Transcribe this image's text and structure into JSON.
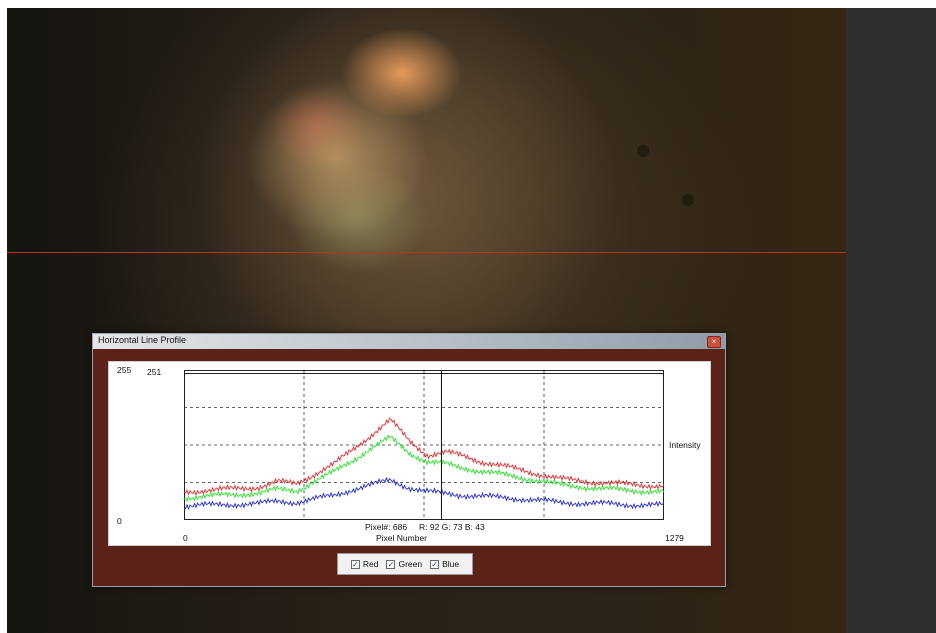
{
  "window": {
    "title": "Horizontal Line Profile",
    "close_glyph": "×"
  },
  "chart_data": {
    "type": "line",
    "title": "",
    "xlabel": "Pixel Number",
    "ylabel": "Intensity",
    "xlim": [
      0,
      1279
    ],
    "ylim": [
      0,
      255
    ],
    "x_tick_labels": [
      "0",
      "1279"
    ],
    "y_tick_labels": [
      "0",
      "255"
    ],
    "y_max_readout": "251",
    "cursor": {
      "pixel": 686,
      "readout": "Pixel#: 686",
      "rgb_readout": "R: 92 G: 73 B: 43"
    },
    "grid": true,
    "x": [
      0,
      100,
      200,
      250,
      300,
      400,
      450,
      500,
      550,
      600,
      650,
      700,
      750,
      800,
      900,
      1000,
      1100,
      1200,
      1279
    ],
    "series": [
      {
        "name": "Red",
        "color": "#e02a2a",
        "values": [
          48,
          52,
          56,
          65,
          62,
          95,
          120,
          145,
          170,
          135,
          110,
          115,
          108,
          98,
          85,
          70,
          64,
          60,
          58
        ]
      },
      {
        "name": "Green",
        "color": "#27e027",
        "values": [
          38,
          42,
          46,
          52,
          50,
          82,
          102,
          122,
          140,
          115,
          98,
          95,
          88,
          82,
          72,
          60,
          54,
          50,
          48
        ]
      },
      {
        "name": "Blue",
        "color": "#1f2ad6",
        "values": [
          24,
          26,
          28,
          32,
          30,
          42,
          52,
          60,
          68,
          55,
          48,
          45,
          42,
          40,
          36,
          30,
          28,
          26,
          25
        ]
      }
    ]
  },
  "legend": {
    "red": "Red",
    "green": "Green",
    "blue": "Blue",
    "check_glyph": "✓"
  }
}
